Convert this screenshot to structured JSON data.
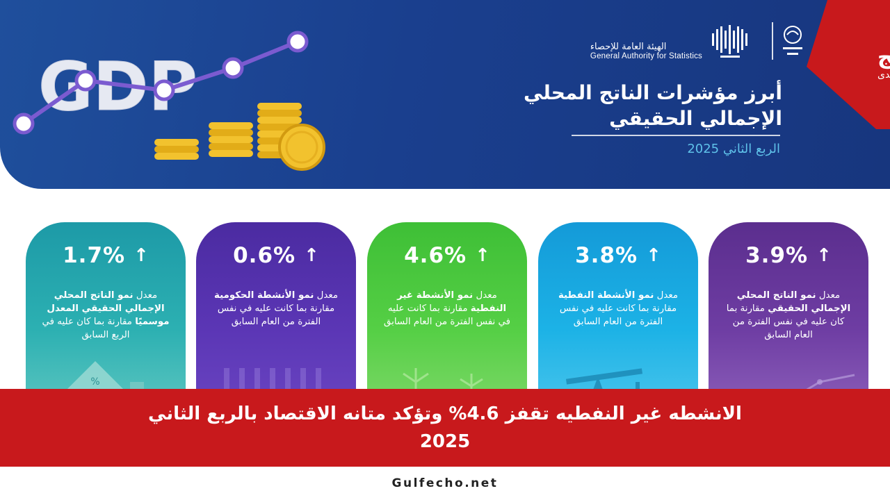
{
  "header": {
    "artwork_word": "GDP",
    "authority_ar": "الهيئة العامة للإحصاء",
    "authority_en": "General Authority for Statistics",
    "title_line1": "أبرز مؤشرات الناتج المحلي",
    "title_line2": "الإجمالي الحقيقي",
    "period": "الربع الثاني 2025"
  },
  "brand": {
    "name": "الخليج",
    "sub": "صدى"
  },
  "cards": [
    {
      "value": "3.9%",
      "arrow": "↑",
      "desc_pre": "معدل ",
      "desc_bold": "نمو الناتج المحلي الإجمالي الحقيقي",
      "desc_post": " مقارنة بما كان عليه في نفس الفترة من العام السابق",
      "color": "#6e3da3"
    },
    {
      "value": "3.8%",
      "arrow": "↑",
      "desc_pre": "معدل ",
      "desc_bold": "نمو الأنشطة النفطية",
      "desc_post": " مقارنة بما كانت عليه في نفس الفترة من العام السابق",
      "color": "#1cb2e6"
    },
    {
      "value": "4.6%",
      "arrow": "↑",
      "desc_pre": "معدل ",
      "desc_bold": "نمو الأنشطة غير النفطية",
      "desc_post": " مقارنة بما كانت عليه في نفس الفترة من العام السابق",
      "color": "#55cf45"
    },
    {
      "value": "0.6%",
      "arrow": "↑",
      "desc_pre": "معدل ",
      "desc_bold": "نمو الأنشطة الحكومية",
      "desc_post": " مقارنة بما كانت عليه في نفس الفترة من العام السابق",
      "color": "#5b36b5"
    },
    {
      "value": "1.7%",
      "arrow": "↑",
      "desc_pre": "معدل ",
      "desc_bold": "نمو الناتج المحلي الإجمالي الحقيقي المعدل موسميًا",
      "desc_post": " مقارنة بما كان عليه في الربع السابق",
      "color": "#2cb0b2"
    }
  ],
  "caption": {
    "line1": "الانشطه غير النفطيه تقفز 4.6% وتؤكد متانه الاقتصاد بالربع الثاني",
    "line2": "2025"
  },
  "site": "Gulfecho.net"
}
